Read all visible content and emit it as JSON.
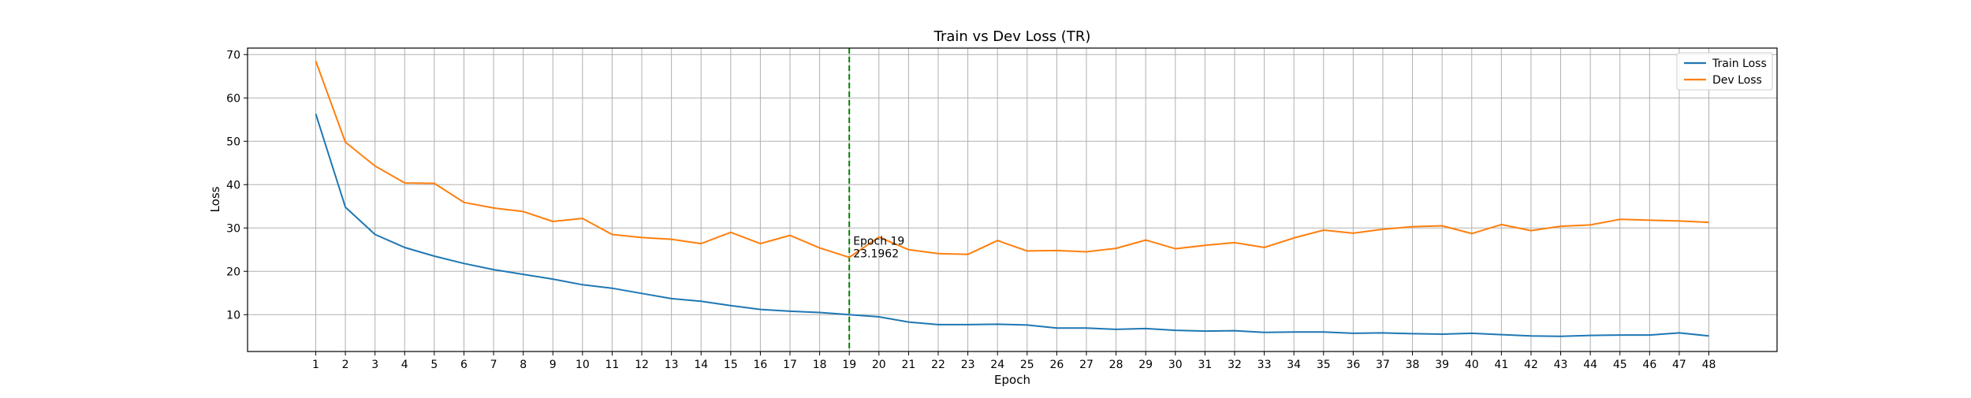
{
  "chart_data": {
    "type": "line",
    "title": "Train vs Dev Loss (TR)",
    "xlabel": "Epoch",
    "ylabel": "Loss",
    "xlim": [
      -1.3,
      50.3
    ],
    "ylim": [
      1.5,
      71.5
    ],
    "x_ticks": [
      1,
      2,
      3,
      4,
      5,
      6,
      7,
      8,
      9,
      10,
      11,
      12,
      13,
      14,
      15,
      16,
      17,
      18,
      19,
      20,
      21,
      22,
      23,
      24,
      25,
      26,
      27,
      28,
      29,
      30,
      31,
      32,
      33,
      34,
      35,
      36,
      37,
      38,
      39,
      40,
      41,
      42,
      43,
      44,
      45,
      46,
      47,
      48
    ],
    "y_ticks": [
      10,
      20,
      30,
      40,
      50,
      60,
      70
    ],
    "grid": true,
    "legend_position": "top-right",
    "x": [
      1,
      2,
      3,
      4,
      5,
      6,
      7,
      8,
      9,
      10,
      11,
      12,
      13,
      14,
      15,
      16,
      17,
      18,
      19,
      20,
      21,
      22,
      23,
      24,
      25,
      26,
      27,
      28,
      29,
      30,
      31,
      32,
      33,
      34,
      35,
      36,
      37,
      38,
      39,
      40,
      41,
      42,
      43,
      44,
      45,
      46,
      47,
      48
    ],
    "series": [
      {
        "name": "Train Loss",
        "color": "#1f77b4",
        "values": [
          56.3,
          34.8,
          28.5,
          25.5,
          23.5,
          21.8,
          20.4,
          19.3,
          18.2,
          16.9,
          16.1,
          14.9,
          13.7,
          13.1,
          12.1,
          11.2,
          10.8,
          10.5,
          10.0,
          9.5,
          8.3,
          7.7,
          7.7,
          7.8,
          7.6,
          6.9,
          6.9,
          6.6,
          6.8,
          6.4,
          6.2,
          6.3,
          5.9,
          6.0,
          6.0,
          5.7,
          5.8,
          5.6,
          5.5,
          5.7,
          5.4,
          5.1,
          5.0,
          5.2,
          5.3,
          5.3,
          5.8,
          5.1
        ]
      },
      {
        "name": "Dev Loss",
        "color": "#ff7f0e",
        "values": [
          68.5,
          49.8,
          44.3,
          40.4,
          40.3,
          35.9,
          34.6,
          33.8,
          31.5,
          32.2,
          28.5,
          27.8,
          27.4,
          26.4,
          29.0,
          26.4,
          28.3,
          25.4,
          23.2,
          27.9,
          25.0,
          24.1,
          23.9,
          27.1,
          24.7,
          24.8,
          24.5,
          25.3,
          27.2,
          25.2,
          26.0,
          26.6,
          25.5,
          27.7,
          29.5,
          28.8,
          29.7,
          30.3,
          30.5,
          28.7,
          30.8,
          29.4,
          30.4,
          30.7,
          32.0,
          31.8,
          31.6,
          31.3
        ]
      }
    ],
    "vline": {
      "x": 19,
      "color": "#008000",
      "style": "dashed"
    },
    "annotation": {
      "x": 19,
      "y": 23.1962,
      "line1": "Epoch 19",
      "line2": "23.1962"
    }
  }
}
